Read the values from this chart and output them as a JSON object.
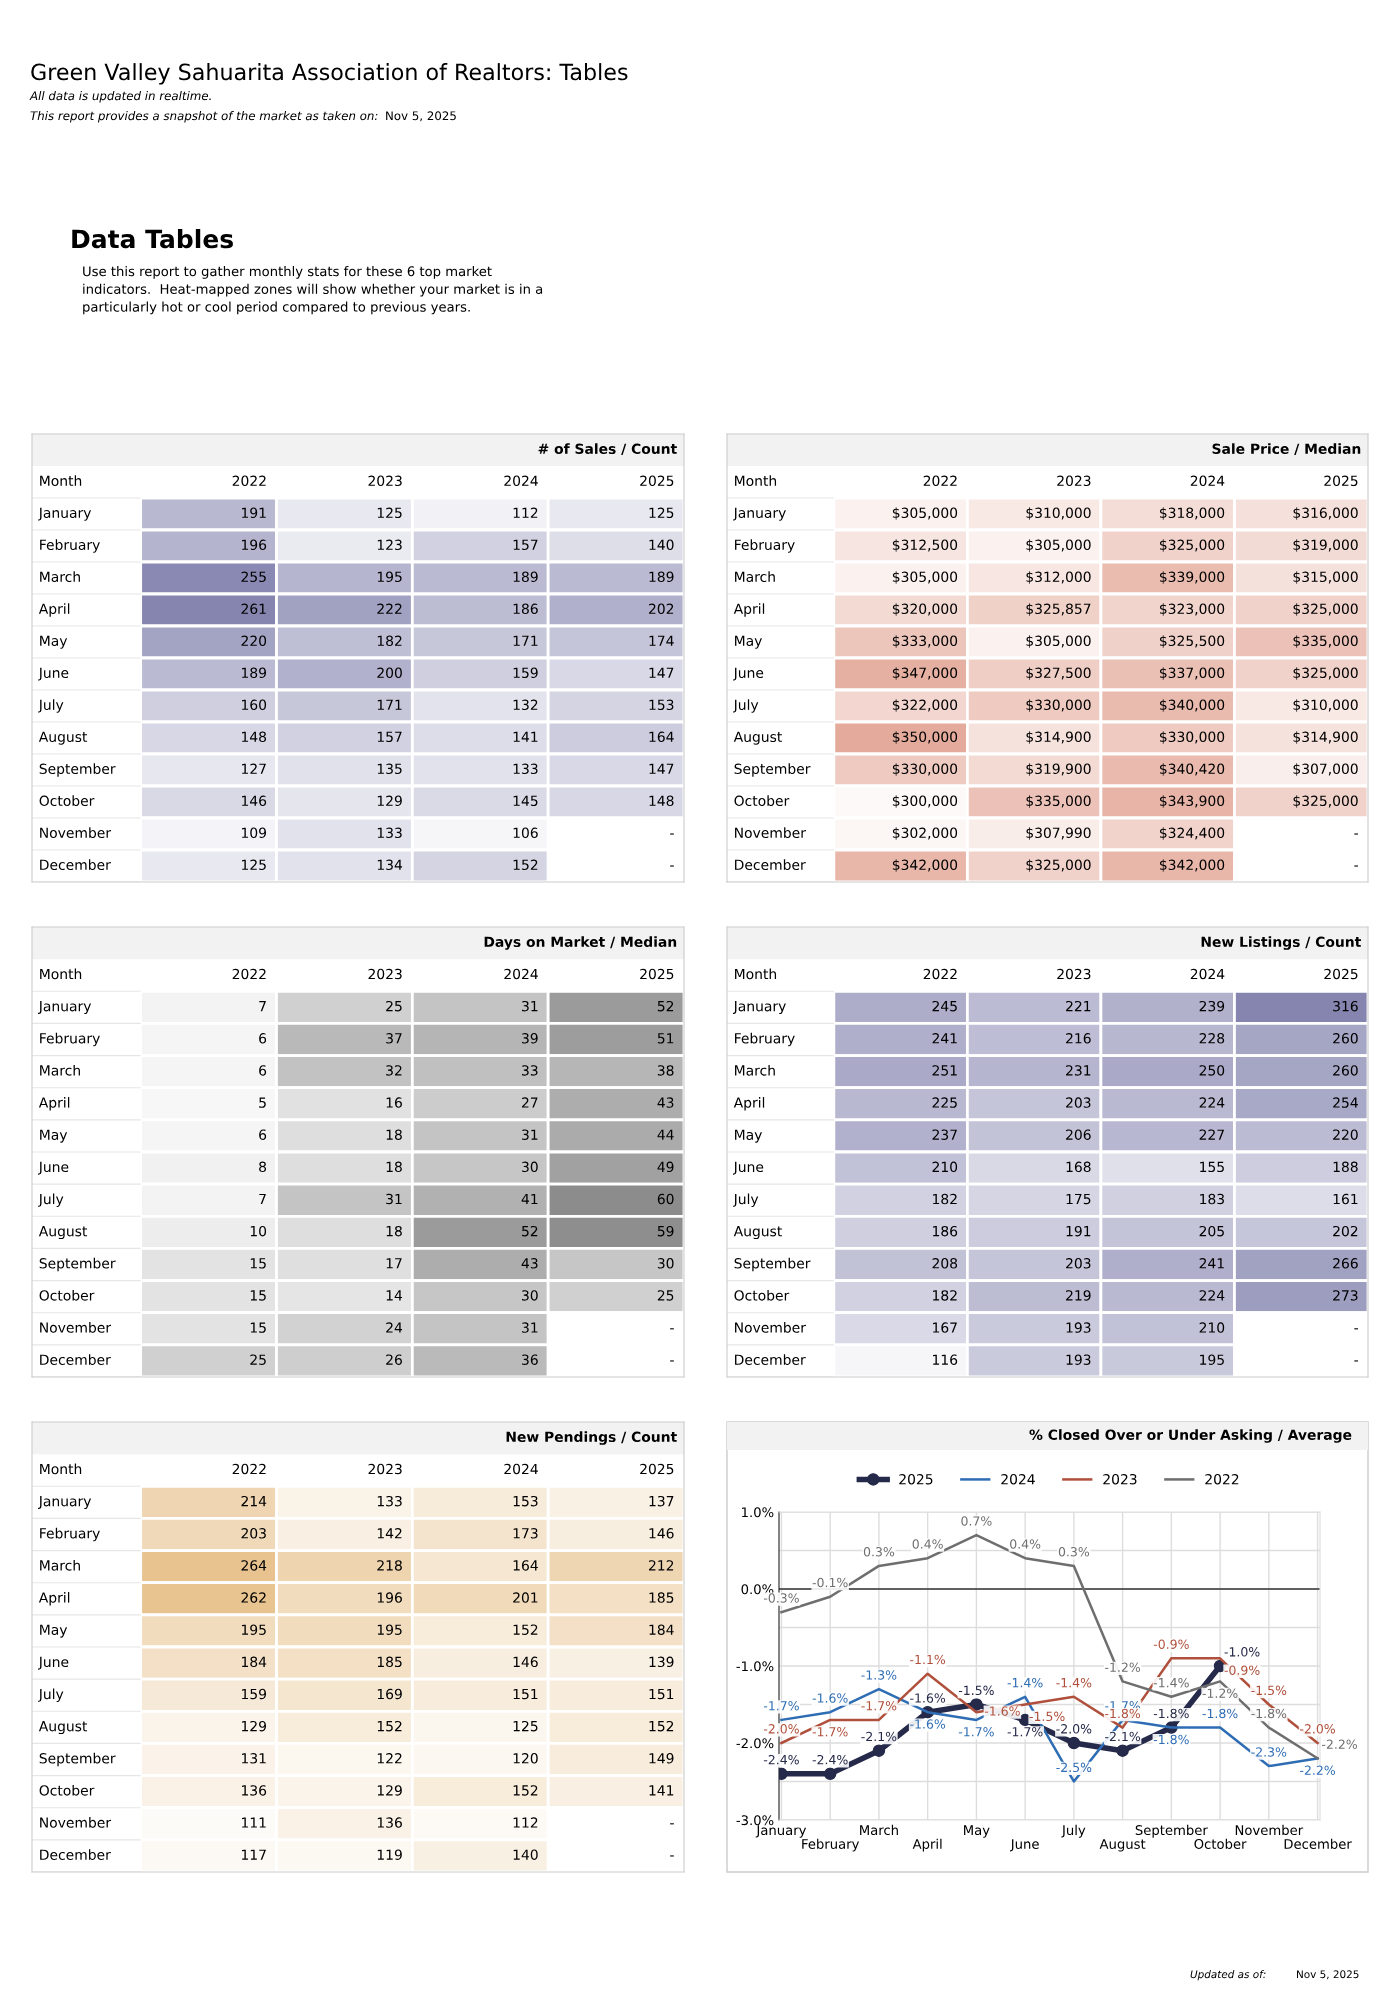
{
  "chart_data": [
    {
      "type": "heatmap",
      "title": "# of Sales / Count",
      "ylabel": "Month",
      "color": "#8585b0",
      "data_labels": true,
      "annotations": [
        "Green Valley Sahuarita Association of Realtors: Tables",
        "All data is updated in realtime.",
        "This report provides a snapshot of the market as taken on:",
        "Nov 5, 2025",
        "Data Tables",
        "Use this report to gather monthly stats for these 6 top market\nindicators.  Heat-mapped zones will show whether your market is in a\nparticularly hot or cool period compared to previous years."
      ],
      "categories": [
        "2022",
        "2023",
        "2024",
        "2025"
      ],
      "y_categories": [
        "January",
        "February",
        "March",
        "April",
        "May",
        "June",
        "July",
        "August",
        "September",
        "October",
        "November",
        "December"
      ],
      "cells": [
        [
          191,
          125,
          112,
          125
        ],
        [
          196,
          123,
          157,
          140
        ],
        [
          255,
          195,
          189,
          189
        ],
        [
          261,
          222,
          186,
          202
        ],
        [
          220,
          182,
          171,
          174
        ],
        [
          189,
          200,
          159,
          147
        ],
        [
          160,
          171,
          132,
          153
        ],
        [
          148,
          157,
          141,
          164
        ],
        [
          127,
          135,
          133,
          147
        ],
        [
          146,
          129,
          145,
          148
        ],
        [
          109,
          133,
          106,
          null
        ],
        [
          125,
          134,
          152,
          null
        ]
      ],
      "cell_labels": [
        [
          "191",
          "125",
          "112",
          "125"
        ],
        [
          "196",
          "123",
          "157",
          "140"
        ],
        [
          "255",
          "195",
          "189",
          "189"
        ],
        [
          "261",
          "222",
          "186",
          "202"
        ],
        [
          "220",
          "182",
          "171",
          "174"
        ],
        [
          "189",
          "200",
          "159",
          "147"
        ],
        [
          "160",
          "171",
          "132",
          "153"
        ],
        [
          "148",
          "157",
          "141",
          "164"
        ],
        [
          "127",
          "135",
          "133",
          "147"
        ],
        [
          "146",
          "129",
          "145",
          "148"
        ],
        [
          "109",
          "133",
          "106",
          "-"
        ],
        [
          "125",
          "134",
          "152",
          "-"
        ]
      ]
    },
    {
      "type": "heatmap",
      "title": "Sale Price / Median",
      "ylabel": "Month",
      "color": "#e4ab9c",
      "data_labels": true,
      "categories": [
        "2022",
        "2023",
        "2024",
        "2025"
      ],
      "y_categories": [
        "January",
        "February",
        "March",
        "April",
        "May",
        "June",
        "July",
        "August",
        "September",
        "October",
        "November",
        "December"
      ],
      "cells": [
        [
          305000,
          310000,
          318000,
          316000
        ],
        [
          312500,
          305000,
          325000,
          319000
        ],
        [
          305000,
          312000,
          339000,
          315000
        ],
        [
          320000,
          325857,
          323000,
          325000
        ],
        [
          333000,
          305000,
          325500,
          335000
        ],
        [
          347000,
          327500,
          337000,
          325000
        ],
        [
          322000,
          330000,
          340000,
          310000
        ],
        [
          350000,
          314900,
          330000,
          314900
        ],
        [
          330000,
          319900,
          340420,
          307000
        ],
        [
          300000,
          335000,
          343900,
          325000
        ],
        [
          302000,
          307990,
          324400,
          null
        ],
        [
          342000,
          325000,
          342000,
          null
        ]
      ],
      "cell_labels": [
        [
          "$305,000",
          "$310,000",
          "$318,000",
          "$316,000"
        ],
        [
          "$312,500",
          "$305,000",
          "$325,000",
          "$319,000"
        ],
        [
          "$305,000",
          "$312,000",
          "$339,000",
          "$315,000"
        ],
        [
          "$320,000",
          "$325,857",
          "$323,000",
          "$325,000"
        ],
        [
          "$333,000",
          "$305,000",
          "$325,500",
          "$335,000"
        ],
        [
          "$347,000",
          "$327,500",
          "$337,000",
          "$325,000"
        ],
        [
          "$322,000",
          "$330,000",
          "$340,000",
          "$310,000"
        ],
        [
          "$350,000",
          "$314,900",
          "$330,000",
          "$314,900"
        ],
        [
          "$330,000",
          "$319,900",
          "$340,420",
          "$307,000"
        ],
        [
          "$300,000",
          "$335,000",
          "$343,900",
          "$325,000"
        ],
        [
          "$302,000",
          "$307,990",
          "$324,400",
          "-"
        ],
        [
          "$342,000",
          "$325,000",
          "$342,000",
          "-"
        ]
      ]
    },
    {
      "type": "heatmap",
      "title": "Days on Market / Median",
      "ylabel": "Month",
      "color": "#8c8c8c",
      "data_labels": true,
      "categories": [
        "2022",
        "2023",
        "2024",
        "2025"
      ],
      "y_categories": [
        "January",
        "February",
        "March",
        "April",
        "May",
        "June",
        "July",
        "August",
        "September",
        "October",
        "November",
        "December"
      ],
      "cells": [
        [
          7,
          25,
          31,
          52
        ],
        [
          6,
          37,
          39,
          51
        ],
        [
          6,
          32,
          33,
          38
        ],
        [
          5,
          16,
          27,
          43
        ],
        [
          6,
          18,
          31,
          44
        ],
        [
          8,
          18,
          30,
          49
        ],
        [
          7,
          31,
          41,
          60
        ],
        [
          10,
          18,
          52,
          59
        ],
        [
          15,
          17,
          43,
          30
        ],
        [
          15,
          14,
          30,
          25
        ],
        [
          15,
          24,
          31,
          null
        ],
        [
          25,
          26,
          36,
          null
        ]
      ],
      "cell_labels": [
        [
          "7",
          "25",
          "31",
          "52"
        ],
        [
          "6",
          "37",
          "39",
          "51"
        ],
        [
          "6",
          "32",
          "33",
          "38"
        ],
        [
          "5",
          "16",
          "27",
          "43"
        ],
        [
          "6",
          "18",
          "31",
          "44"
        ],
        [
          "8",
          "18",
          "30",
          "49"
        ],
        [
          "7",
          "31",
          "41",
          "60"
        ],
        [
          "10",
          "18",
          "52",
          "59"
        ],
        [
          "15",
          "17",
          "43",
          "30"
        ],
        [
          "15",
          "14",
          "30",
          "25"
        ],
        [
          "15",
          "24",
          "31",
          "-"
        ],
        [
          "25",
          "26",
          "36",
          "-"
        ]
      ]
    },
    {
      "type": "heatmap",
      "title": "New Listings / Count",
      "ylabel": "Month",
      "color": "#8585b0",
      "data_labels": true,
      "categories": [
        "2022",
        "2023",
        "2024",
        "2025"
      ],
      "y_categories": [
        "January",
        "February",
        "March",
        "April",
        "May",
        "June",
        "July",
        "August",
        "September",
        "October",
        "November",
        "December"
      ],
      "cells": [
        [
          245,
          221,
          239,
          316
        ],
        [
          241,
          216,
          228,
          260
        ],
        [
          251,
          231,
          250,
          260
        ],
        [
          225,
          203,
          224,
          254
        ],
        [
          237,
          206,
          227,
          220
        ],
        [
          210,
          168,
          155,
          188
        ],
        [
          182,
          175,
          183,
          161
        ],
        [
          186,
          191,
          205,
          202
        ],
        [
          208,
          203,
          241,
          266
        ],
        [
          182,
          219,
          224,
          273
        ],
        [
          167,
          193,
          210,
          null
        ],
        [
          116,
          193,
          195,
          null
        ]
      ],
      "cell_labels": [
        [
          "245",
          "221",
          "239",
          "316"
        ],
        [
          "241",
          "216",
          "228",
          "260"
        ],
        [
          "251",
          "231",
          "250",
          "260"
        ],
        [
          "225",
          "203",
          "224",
          "254"
        ],
        [
          "237",
          "206",
          "227",
          "220"
        ],
        [
          "210",
          "168",
          "155",
          "188"
        ],
        [
          "182",
          "175",
          "183",
          "161"
        ],
        [
          "186",
          "191",
          "205",
          "202"
        ],
        [
          "208",
          "203",
          "241",
          "266"
        ],
        [
          "182",
          "219",
          "224",
          "273"
        ],
        [
          "167",
          "193",
          "210",
          "-"
        ],
        [
          "116",
          "193",
          "195",
          "-"
        ]
      ]
    },
    {
      "type": "heatmap",
      "title": "New Pendings / Count",
      "ylabel": "Month",
      "color": "#e8c390",
      "data_labels": true,
      "categories": [
        "2022",
        "2023",
        "2024",
        "2025"
      ],
      "y_categories": [
        "January",
        "February",
        "March",
        "April",
        "May",
        "June",
        "July",
        "August",
        "September",
        "October",
        "November",
        "December"
      ],
      "cells": [
        [
          214,
          133,
          153,
          137
        ],
        [
          203,
          142,
          173,
          146
        ],
        [
          264,
          218,
          164,
          212
        ],
        [
          262,
          196,
          201,
          185
        ],
        [
          195,
          195,
          152,
          184
        ],
        [
          184,
          185,
          146,
          139
        ],
        [
          159,
          169,
          151,
          151
        ],
        [
          129,
          152,
          125,
          152
        ],
        [
          131,
          122,
          120,
          149
        ],
        [
          136,
          129,
          152,
          141
        ],
        [
          111,
          136,
          112,
          null
        ],
        [
          117,
          119,
          140,
          null
        ]
      ],
      "cell_labels": [
        [
          "214",
          "133",
          "153",
          "137"
        ],
        [
          "203",
          "142",
          "173",
          "146"
        ],
        [
          "264",
          "218",
          "164",
          "212"
        ],
        [
          "262",
          "196",
          "201",
          "185"
        ],
        [
          "195",
          "195",
          "152",
          "184"
        ],
        [
          "184",
          "185",
          "146",
          "139"
        ],
        [
          "159",
          "169",
          "151",
          "151"
        ],
        [
          "129",
          "152",
          "125",
          "152"
        ],
        [
          "131",
          "122",
          "120",
          "149"
        ],
        [
          "136",
          "129",
          "152",
          "141"
        ],
        [
          "111",
          "136",
          "112",
          "-"
        ],
        [
          "117",
          "119",
          "140",
          "-"
        ]
      ]
    },
    {
      "type": "line",
      "title": "% Closed Over or Under Asking / Average",
      "legend": "top",
      "grid": true,
      "annotations": [
        "Updated as of:",
        "Nov 5, 2025"
      ],
      "categories": [
        "January",
        "February",
        "March",
        "April",
        "May",
        "June",
        "July",
        "August",
        "September",
        "October",
        "November",
        "December"
      ],
      "ylim": [
        -3,
        1
      ],
      "yticks": [
        {
          "value": -3,
          "label": "-3.0%"
        },
        {
          "value": -2.5,
          "label": null
        },
        {
          "value": -2,
          "label": "-2.0%"
        },
        {
          "value": -1.5,
          "label": null
        },
        {
          "value": -1,
          "label": "-1.0%"
        },
        {
          "value": -0.5,
          "label": null
        },
        {
          "value": 0,
          "label": "0.0%"
        },
        {
          "value": 0.5,
          "label": null
        },
        {
          "value": 1,
          "label": "1.0%"
        }
      ],
      "ref_lines": [
        {
          "axis": "y",
          "value": 0,
          "color": "#333333"
        }
      ],
      "series": [
        {
          "name": "2025",
          "color": "#262a4a",
          "marker": "circle",
          "values": [
            -2.4,
            -2.4,
            -2.1,
            -1.6,
            -1.5,
            -1.7,
            -2.0,
            -2.1,
            -1.8,
            -1.0,
            null,
            null
          ],
          "value_labels": [
            "-2.4%",
            "-2.4%",
            "-2.1%",
            "-1.6%",
            "-1.5%",
            "-1.7%",
            "-2.0%",
            "-2.1%",
            "-1.8%",
            "-1.0%",
            null,
            null
          ]
        },
        {
          "name": "2024",
          "color": "#2e6db4",
          "values": [
            -1.7,
            -1.6,
            -1.3,
            -1.6,
            -1.7,
            -1.4,
            -2.5,
            -1.7,
            -1.8,
            -1.8,
            -2.3,
            -2.2
          ],
          "value_labels": [
            "-1.7%",
            "-1.6%",
            "-1.3%",
            "-1.6%",
            "-1.7%",
            "-1.4%",
            "-2.5%",
            "-1.7%",
            "-1.8%",
            "-1.8%",
            "-2.3%",
            "-2.2%"
          ]
        },
        {
          "name": "2023",
          "color": "#b0503c",
          "values": [
            -2.0,
            -1.7,
            -1.7,
            -1.1,
            -1.6,
            -1.5,
            -1.4,
            -1.8,
            -0.9,
            -0.9,
            -1.5,
            -2.0
          ],
          "value_labels": [
            "-2.0%",
            "-1.7%",
            "-1.7%",
            "-1.1%",
            "-1.6%",
            "-1.5%",
            "-1.4%",
            "-1.8%",
            "-0.9%",
            "-0.9%",
            "-1.5%",
            "-2.0%"
          ]
        },
        {
          "name": "2022",
          "color": "#6e6e6e",
          "values": [
            -0.3,
            -0.1,
            0.3,
            0.4,
            0.7,
            0.4,
            0.3,
            -1.2,
            -1.4,
            -1.2,
            -1.8,
            -2.2
          ],
          "value_labels": [
            "-0.3%",
            "-0.1%",
            "0.3%",
            "0.4%",
            "0.7%",
            "0.4%",
            "0.3%",
            "-1.2%",
            "-1.4%",
            "-1.2%",
            "-1.8%",
            "-2.2%"
          ]
        }
      ]
    }
  ]
}
